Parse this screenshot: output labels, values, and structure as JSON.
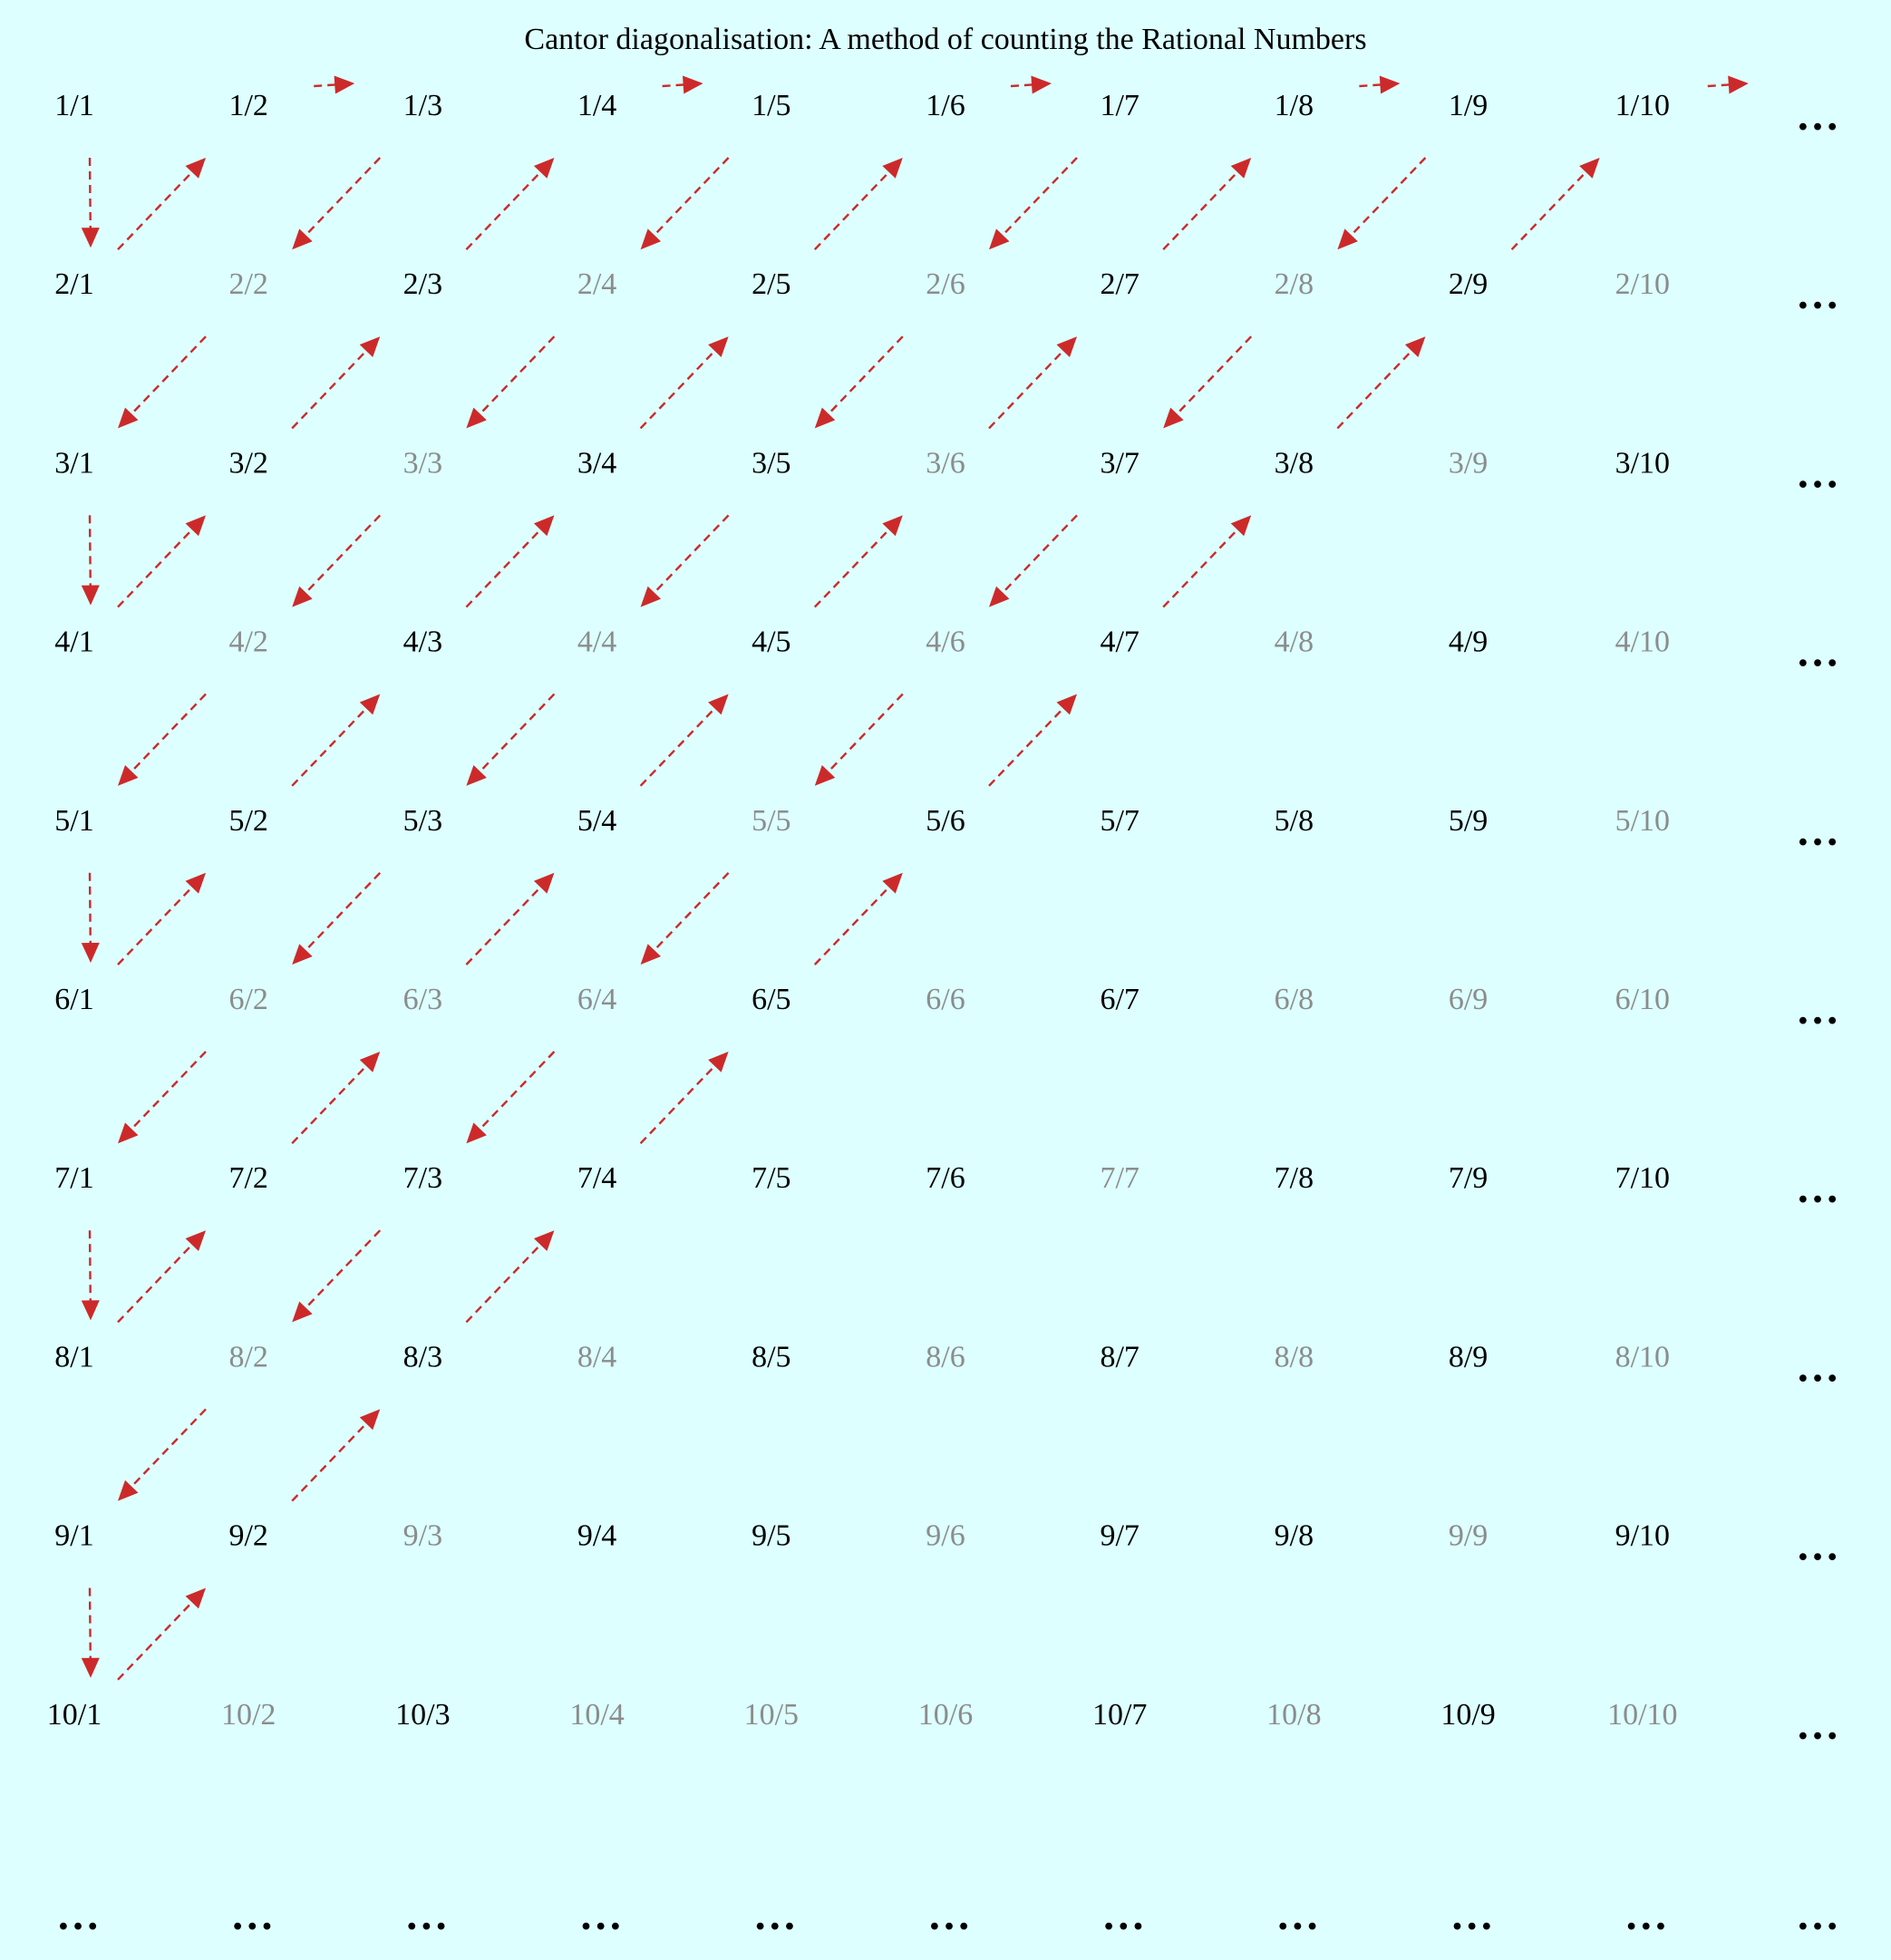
{
  "title": "Cantor diagonalisation: A method of counting the Rational Numbers",
  "ellipsis": "…",
  "colors": {
    "background": "#ddffff",
    "reduced_fraction": "#000000",
    "duplicate_fraction": "#8c8c8c",
    "arrow": "#cc2a2a"
  },
  "grid": {
    "rows": 10,
    "cols": 10,
    "cells": [
      [
        {
          "t": "1/1",
          "dup": false
        },
        {
          "t": "1/2",
          "dup": false
        },
        {
          "t": "1/3",
          "dup": false
        },
        {
          "t": "1/4",
          "dup": false
        },
        {
          "t": "1/5",
          "dup": false
        },
        {
          "t": "1/6",
          "dup": false
        },
        {
          "t": "1/7",
          "dup": false
        },
        {
          "t": "1/8",
          "dup": false
        },
        {
          "t": "1/9",
          "dup": false
        },
        {
          "t": "1/10",
          "dup": false
        }
      ],
      [
        {
          "t": "2/1",
          "dup": false
        },
        {
          "t": "2/2",
          "dup": true
        },
        {
          "t": "2/3",
          "dup": false
        },
        {
          "t": "2/4",
          "dup": true
        },
        {
          "t": "2/5",
          "dup": false
        },
        {
          "t": "2/6",
          "dup": true
        },
        {
          "t": "2/7",
          "dup": false
        },
        {
          "t": "2/8",
          "dup": true
        },
        {
          "t": "2/9",
          "dup": false
        },
        {
          "t": "2/10",
          "dup": true
        }
      ],
      [
        {
          "t": "3/1",
          "dup": false
        },
        {
          "t": "3/2",
          "dup": false
        },
        {
          "t": "3/3",
          "dup": true
        },
        {
          "t": "3/4",
          "dup": false
        },
        {
          "t": "3/5",
          "dup": false
        },
        {
          "t": "3/6",
          "dup": true
        },
        {
          "t": "3/7",
          "dup": false
        },
        {
          "t": "3/8",
          "dup": false
        },
        {
          "t": "3/9",
          "dup": true
        },
        {
          "t": "3/10",
          "dup": false
        }
      ],
      [
        {
          "t": "4/1",
          "dup": false
        },
        {
          "t": "4/2",
          "dup": true
        },
        {
          "t": "4/3",
          "dup": false
        },
        {
          "t": "4/4",
          "dup": true
        },
        {
          "t": "4/5",
          "dup": false
        },
        {
          "t": "4/6",
          "dup": true
        },
        {
          "t": "4/7",
          "dup": false
        },
        {
          "t": "4/8",
          "dup": true
        },
        {
          "t": "4/9",
          "dup": false
        },
        {
          "t": "4/10",
          "dup": true
        }
      ],
      [
        {
          "t": "5/1",
          "dup": false
        },
        {
          "t": "5/2",
          "dup": false
        },
        {
          "t": "5/3",
          "dup": false
        },
        {
          "t": "5/4",
          "dup": false
        },
        {
          "t": "5/5",
          "dup": true
        },
        {
          "t": "5/6",
          "dup": false
        },
        {
          "t": "5/7",
          "dup": false
        },
        {
          "t": "5/8",
          "dup": false
        },
        {
          "t": "5/9",
          "dup": false
        },
        {
          "t": "5/10",
          "dup": true
        }
      ],
      [
        {
          "t": "6/1",
          "dup": false
        },
        {
          "t": "6/2",
          "dup": true
        },
        {
          "t": "6/3",
          "dup": true
        },
        {
          "t": "6/4",
          "dup": true
        },
        {
          "t": "6/5",
          "dup": false
        },
        {
          "t": "6/6",
          "dup": true
        },
        {
          "t": "6/7",
          "dup": false
        },
        {
          "t": "6/8",
          "dup": true
        },
        {
          "t": "6/9",
          "dup": true
        },
        {
          "t": "6/10",
          "dup": true
        }
      ],
      [
        {
          "t": "7/1",
          "dup": false
        },
        {
          "t": "7/2",
          "dup": false
        },
        {
          "t": "7/3",
          "dup": false
        },
        {
          "t": "7/4",
          "dup": false
        },
        {
          "t": "7/5",
          "dup": false
        },
        {
          "t": "7/6",
          "dup": false
        },
        {
          "t": "7/7",
          "dup": true
        },
        {
          "t": "7/8",
          "dup": false
        },
        {
          "t": "7/9",
          "dup": false
        },
        {
          "t": "7/10",
          "dup": false
        }
      ],
      [
        {
          "t": "8/1",
          "dup": false
        },
        {
          "t": "8/2",
          "dup": true
        },
        {
          "t": "8/3",
          "dup": false
        },
        {
          "t": "8/4",
          "dup": true
        },
        {
          "t": "8/5",
          "dup": false
        },
        {
          "t": "8/6",
          "dup": true
        },
        {
          "t": "8/7",
          "dup": false
        },
        {
          "t": "8/8",
          "dup": true
        },
        {
          "t": "8/9",
          "dup": false
        },
        {
          "t": "8/10",
          "dup": true
        }
      ],
      [
        {
          "t": "9/1",
          "dup": false
        },
        {
          "t": "9/2",
          "dup": false
        },
        {
          "t": "9/3",
          "dup": true
        },
        {
          "t": "9/4",
          "dup": false
        },
        {
          "t": "9/5",
          "dup": false
        },
        {
          "t": "9/6",
          "dup": true
        },
        {
          "t": "9/7",
          "dup": false
        },
        {
          "t": "9/8",
          "dup": false
        },
        {
          "t": "9/9",
          "dup": true
        },
        {
          "t": "9/10",
          "dup": false
        }
      ],
      [
        {
          "t": "10/1",
          "dup": false
        },
        {
          "t": "10/2",
          "dup": true
        },
        {
          "t": "10/3",
          "dup": false
        },
        {
          "t": "10/4",
          "dup": true
        },
        {
          "t": "10/5",
          "dup": true
        },
        {
          "t": "10/6",
          "dup": true
        },
        {
          "t": "10/7",
          "dup": false
        },
        {
          "t": "10/8",
          "dup": true
        },
        {
          "t": "10/9",
          "dup": false
        },
        {
          "t": "10/10",
          "dup": true
        }
      ]
    ]
  }
}
